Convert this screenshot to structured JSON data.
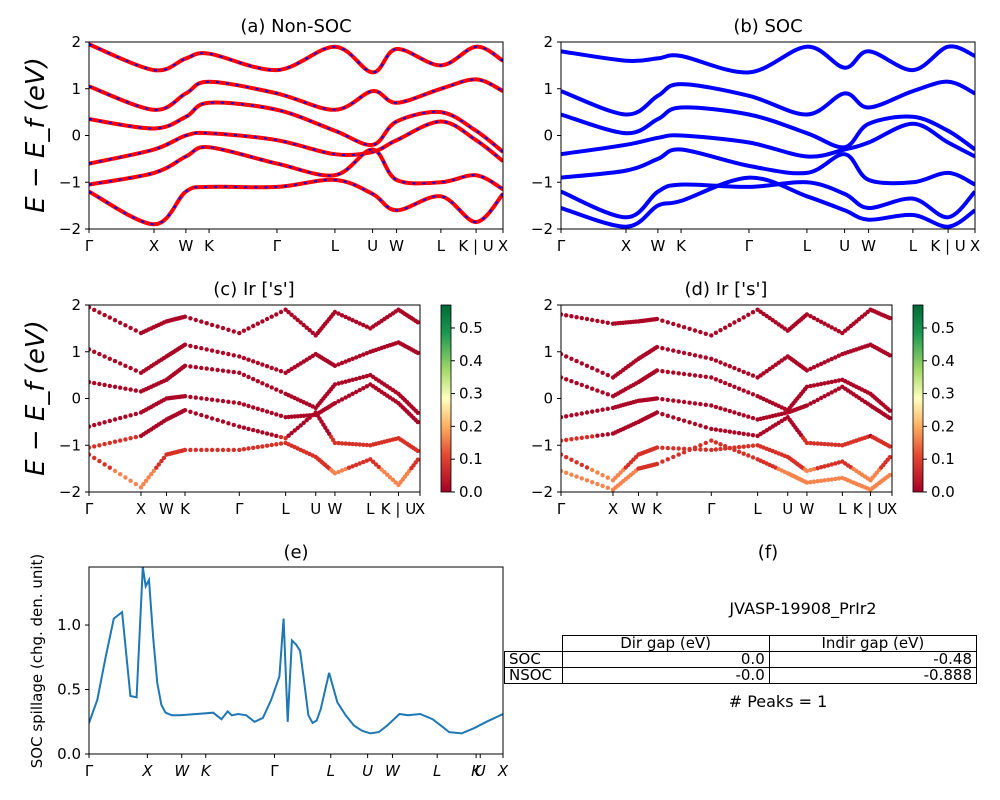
{
  "figure_id": "JVASP-19908_PrIr2",
  "peaks_label": "# Peaks = 1",
  "colors": {
    "nonsoc_red": "#ff0000",
    "nonsoc_blue": "#0000ff",
    "soc_blue": "#0000ff",
    "spillage_line": "#1f77b4"
  },
  "gap_table": {
    "columns": [
      "Dir gap (eV)",
      "Indir gap (eV)"
    ],
    "rows": [
      {
        "label": "SOC",
        "dir": "0.0",
        "indir": "-0.48"
      },
      {
        "label": "NSOC",
        "dir": "-0.0",
        "indir": "-0.888"
      }
    ]
  },
  "chart_data": [
    {
      "panel": "a",
      "type": "line",
      "title": "(a) Non-SOC",
      "ylabel": "E − E_f (eV)",
      "ylim": [
        -2,
        2
      ],
      "yticks": [
        "−2",
        "−1",
        "0",
        "1",
        "2"
      ],
      "kpath_ticks": [
        "Γ",
        "X",
        "W",
        "K",
        "Γ",
        "L",
        "U",
        "W",
        "L",
        "K | U",
        "X"
      ],
      "kpath_positions": [
        0,
        0.157,
        0.234,
        0.29,
        0.454,
        0.594,
        0.685,
        0.743,
        0.85,
        0.935,
        1.0
      ],
      "series": [
        {
          "values": [
            1.05,
            0.55,
            0.9,
            1.15,
            0.9,
            0.55,
            0.95,
            0.7,
            1.0,
            1.2,
            0.95
          ]
        },
        {
          "values": [
            0.35,
            0.15,
            0.4,
            0.7,
            0.55,
            0.1,
            -0.2,
            0.3,
            0.5,
            0.1,
            -0.35
          ]
        },
        {
          "values": [
            -0.6,
            -0.3,
            0.0,
            0.05,
            -0.1,
            -0.4,
            -0.35,
            -0.1,
            0.3,
            -0.1,
            -0.55
          ]
        },
        {
          "values": [
            -1.05,
            -0.8,
            -0.45,
            -0.25,
            -0.6,
            -0.85,
            -0.3,
            -0.95,
            -1.0,
            -0.85,
            -1.15
          ]
        },
        {
          "values": [
            -1.2,
            -1.9,
            -1.2,
            -1.1,
            -1.1,
            -0.95,
            -1.25,
            -1.6,
            -1.3,
            -1.85,
            -1.25
          ]
        },
        {
          "values": [
            1.95,
            1.4,
            1.65,
            1.75,
            1.4,
            1.9,
            1.35,
            1.85,
            1.5,
            1.9,
            1.6
          ]
        }
      ]
    },
    {
      "panel": "b",
      "type": "line",
      "title": "(b) SOC",
      "ylabel": "",
      "ylim": [
        -2,
        2
      ],
      "yticks": [
        "−2",
        "−1",
        "0",
        "1",
        "2"
      ],
      "kpath_ticks": [
        "Γ",
        "X",
        "W",
        "K",
        "Γ",
        "L",
        "U",
        "W",
        "L",
        "K | U",
        "X"
      ],
      "kpath_positions": [
        0,
        0.157,
        0.234,
        0.29,
        0.454,
        0.594,
        0.685,
        0.743,
        0.85,
        0.935,
        1.0
      ],
      "series": [
        {
          "values": [
            1.8,
            1.6,
            1.65,
            1.7,
            1.35,
            1.9,
            1.45,
            1.8,
            1.4,
            1.9,
            1.7
          ]
        },
        {
          "values": [
            0.95,
            0.45,
            0.85,
            1.1,
            0.85,
            0.45,
            0.9,
            0.6,
            0.95,
            1.15,
            0.9
          ]
        },
        {
          "values": [
            0.45,
            0.05,
            0.35,
            0.6,
            0.45,
            0.05,
            -0.25,
            0.25,
            0.4,
            0.1,
            -0.3
          ]
        },
        {
          "values": [
            -0.4,
            -0.2,
            -0.05,
            0.0,
            -0.15,
            -0.45,
            -0.3,
            -0.15,
            0.25,
            -0.15,
            -0.45
          ]
        },
        {
          "values": [
            -0.9,
            -0.75,
            -0.5,
            -0.3,
            -0.65,
            -0.8,
            -0.4,
            -0.95,
            -1.0,
            -0.8,
            -1.05
          ]
        },
        {
          "values": [
            -1.2,
            -1.75,
            -1.2,
            -1.05,
            -1.1,
            -1.0,
            -1.25,
            -1.55,
            -1.35,
            -1.75,
            -1.2
          ]
        },
        {
          "values": [
            -1.55,
            -1.95,
            -1.5,
            -1.4,
            -0.9,
            -1.3,
            -1.6,
            -1.8,
            -1.7,
            -1.95,
            -1.6
          ]
        }
      ]
    },
    {
      "panel": "c",
      "type": "scatter",
      "title": "(c)  Ir ['s']",
      "ylabel": "E − E_f (eV)",
      "ylim": [
        -2,
        2
      ],
      "yticks": [
        "−2",
        "−1",
        "0",
        "1",
        "2"
      ],
      "kpath_ticks": [
        "Γ",
        "X",
        "W",
        "K",
        "Γ",
        "L",
        "U",
        "W",
        "L",
        "K | U",
        "X"
      ],
      "kpath_positions": [
        0,
        0.157,
        0.234,
        0.29,
        0.454,
        0.594,
        0.685,
        0.743,
        0.85,
        0.935,
        1.0
      ],
      "colorbar": {
        "ticks": [
          "0.0",
          "0.1",
          "0.2",
          "0.3",
          "0.4",
          "0.5"
        ],
        "range": [
          0.0,
          0.57
        ]
      }
    },
    {
      "panel": "d",
      "type": "scatter",
      "title": "(d) Ir ['s']",
      "ylabel": "",
      "ylim": [
        -2,
        2
      ],
      "yticks": [
        "−2",
        "−1",
        "0",
        "1",
        "2"
      ],
      "kpath_ticks": [
        "Γ",
        "X",
        "W",
        "K",
        "Γ",
        "L",
        "U",
        "W",
        "L",
        "K | U",
        "X"
      ],
      "kpath_positions": [
        0,
        0.157,
        0.234,
        0.29,
        0.454,
        0.594,
        0.685,
        0.743,
        0.85,
        0.935,
        1.0
      ],
      "colorbar": {
        "ticks": [
          "0.0",
          "0.1",
          "0.2",
          "0.3",
          "0.4",
          "0.5"
        ],
        "range": [
          0.0,
          0.57
        ]
      }
    },
    {
      "panel": "e",
      "type": "line",
      "title": "(e)",
      "ylabel": "SOC spillage (chg. den. unit)",
      "ylim": [
        0,
        1.45
      ],
      "yticks": [
        "0.0",
        "0.5",
        "1.0"
      ],
      "kpath_ticks": [
        "Γ",
        "X",
        "W",
        "K",
        "Γ",
        "L",
        "U",
        "W",
        "L",
        "K",
        "U",
        "X"
      ],
      "kpath_positions": [
        0,
        0.141,
        0.224,
        0.282,
        0.448,
        0.584,
        0.673,
        0.733,
        0.841,
        0.935,
        0.945,
        1.0
      ],
      "x": [
        0.0,
        0.02,
        0.04,
        0.06,
        0.08,
        0.1,
        0.115,
        0.13,
        0.137,
        0.145,
        0.155,
        0.165,
        0.175,
        0.185,
        0.2,
        0.22,
        0.26,
        0.3,
        0.32,
        0.335,
        0.345,
        0.36,
        0.38,
        0.4,
        0.42,
        0.44,
        0.46,
        0.47,
        0.48,
        0.49,
        0.5,
        0.51,
        0.52,
        0.53,
        0.54,
        0.55,
        0.56,
        0.58,
        0.6,
        0.62,
        0.64,
        0.66,
        0.68,
        0.7,
        0.72,
        0.74,
        0.75,
        0.77,
        0.8,
        0.83,
        0.85,
        0.87,
        0.9,
        0.93,
        0.96,
        1.0
      ],
      "values": [
        0.24,
        0.42,
        0.75,
        1.05,
        1.1,
        0.45,
        0.44,
        1.45,
        1.3,
        1.35,
        0.9,
        0.55,
        0.38,
        0.32,
        0.3,
        0.3,
        0.31,
        0.32,
        0.27,
        0.33,
        0.3,
        0.31,
        0.3,
        0.25,
        0.28,
        0.42,
        0.6,
        1.05,
        0.25,
        0.88,
        0.85,
        0.8,
        0.55,
        0.3,
        0.24,
        0.26,
        0.35,
        0.63,
        0.4,
        0.3,
        0.22,
        0.18,
        0.16,
        0.17,
        0.22,
        0.28,
        0.31,
        0.3,
        0.31,
        0.27,
        0.22,
        0.17,
        0.16,
        0.2,
        0.25,
        0.31
      ]
    }
  ]
}
